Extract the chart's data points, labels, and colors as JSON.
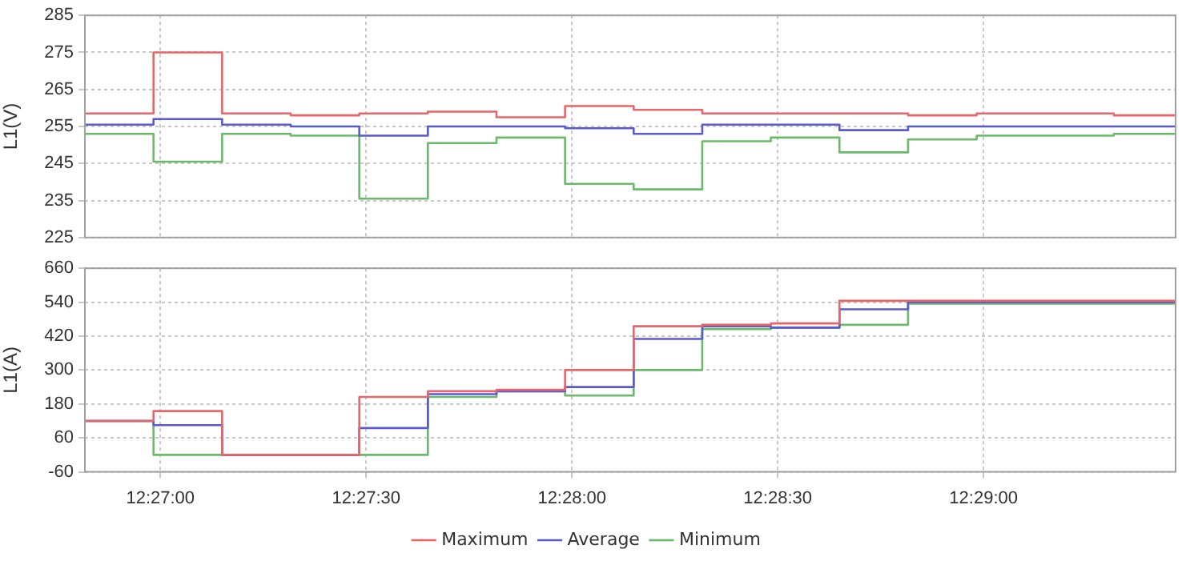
{
  "chart_data": [
    {
      "type": "step",
      "ylabel": "L1(V)",
      "x": [
        12.446944,
        12.449722,
        12.4525,
        12.455278,
        12.458056,
        12.460833,
        12.463611,
        12.466389,
        12.469167,
        12.471944,
        12.474722,
        12.4775,
        12.480278,
        12.483056,
        12.485833,
        12.488611,
        12.491111
      ],
      "series": [
        {
          "color": "#e8656a",
          "values": [
            258.5,
            275,
            258.5,
            258,
            258.5,
            259,
            257.5,
            260.5,
            259.5,
            258.5,
            258.5,
            258.5,
            258,
            258.5,
            258.5,
            258,
            258
          ]
        },
        {
          "color": "#5a5ad0",
          "values": [
            255.5,
            257,
            255.5,
            255,
            252.5,
            255,
            255,
            254.5,
            253,
            255.5,
            255.5,
            254,
            255,
            255,
            255,
            255,
            255
          ]
        },
        {
          "color": "#6aba6a",
          "values": [
            253,
            245.5,
            253,
            252.5,
            235.5,
            250.5,
            252,
            239.5,
            238,
            251,
            252,
            248,
            251.5,
            252.5,
            252.5,
            253,
            253
          ]
        }
      ],
      "xlim": [
        12.446944,
        12.491111
      ],
      "xticks": [
        {
          "value": 12.45,
          "label": null
        },
        {
          "value": 12.458333,
          "label": null
        },
        {
          "value": 12.466667,
          "label": null
        },
        {
          "value": 12.475,
          "label": null
        },
        {
          "value": 12.483333,
          "label": null
        }
      ],
      "ylim": [
        225,
        285
      ],
      "yticks": [
        225,
        235,
        245,
        255,
        265,
        275,
        285
      ],
      "grid": true,
      "tick_labels": "y"
    },
    {
      "type": "step",
      "ylabel": "L1(A)",
      "x": [
        12.446944,
        12.449722,
        12.4525,
        12.455278,
        12.458056,
        12.460833,
        12.463611,
        12.466389,
        12.469167,
        12.471944,
        12.474722,
        12.4775,
        12.480278,
        12.483056,
        12.485833,
        12.488611,
        12.491111
      ],
      "series": [
        {
          "name": "Maximum",
          "color": "#e8656a",
          "values": [
            120,
            155,
            0,
            0,
            205,
            225,
            230,
            300,
            455,
            460,
            465,
            545,
            545,
            545,
            545,
            545,
            545
          ]
        },
        {
          "name": "Average",
          "color": "#5a5ad0",
          "values": [
            120,
            105,
            0,
            0,
            95,
            215,
            225,
            240,
            410,
            455,
            450,
            515,
            540,
            540,
            540,
            540,
            540
          ]
        },
        {
          "name": "Minimum",
          "color": "#6aba6a",
          "values": [
            120,
            0,
            0,
            0,
            0,
            205,
            225,
            210,
            300,
            445,
            450,
            460,
            535,
            535,
            535,
            535,
            535
          ]
        }
      ],
      "xlim": [
        12.446944,
        12.491111
      ],
      "xticks": [
        {
          "value": 12.45,
          "label": "12:27:00"
        },
        {
          "value": 12.458333,
          "label": "12:27:30"
        },
        {
          "value": 12.466667,
          "label": "12:28:00"
        },
        {
          "value": 12.475,
          "label": "12:28:30"
        },
        {
          "value": 12.483333,
          "label": "12:29:00"
        }
      ],
      "ylim": [
        -60,
        660
      ],
      "yticks": [
        -60,
        60,
        180,
        300,
        420,
        540,
        660
      ],
      "grid": true,
      "legend": "bottom"
    }
  ]
}
